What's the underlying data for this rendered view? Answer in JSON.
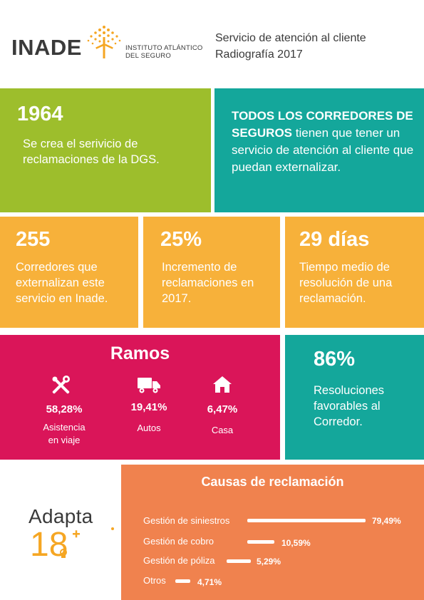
{
  "header": {
    "logo": "INADE",
    "logo_sub1": "INSTITUTO ATLÁNTICO",
    "logo_sub2": "DEL SEGURO",
    "title1": "Servicio de atención al cliente",
    "title2": "Radiografía 2017"
  },
  "box1": {
    "year": "1964",
    "desc": "Se crea el serivicio de reclamaciones de la DGS."
  },
  "box2": {
    "highlight": "TODOS LOS CORREDORES DE SEGUROS",
    "rest": " tienen que tener un servicio de atención al cliente que puedan externalizar."
  },
  "stats": [
    {
      "value": "255",
      "desc": "Corredores que externalizan este servicio en Inade."
    },
    {
      "value": "25%",
      "desc": "Incremento de reclamaciones en 2017."
    },
    {
      "value": "29 días",
      "desc": "Tiempo medio de resolución de una reclamación."
    }
  ],
  "ramos": {
    "title": "Ramos",
    "items": [
      {
        "value": "58,28%",
        "label1": "Asistencia",
        "label2": "en viaje",
        "icon": "tools-icon"
      },
      {
        "value": "19,41%",
        "label1": "Autos",
        "label2": "",
        "icon": "truck-icon"
      },
      {
        "value": "6,47%",
        "label1": "Casa",
        "label2": "",
        "icon": "house-icon"
      }
    ]
  },
  "resoluciones": {
    "value": "86%",
    "desc": "Resoluciones favorables al Corredor."
  },
  "causas": {
    "title": "Causas de reclamación",
    "items": [
      {
        "label": "Gestión de siniestros",
        "value": "79,49%",
        "pct": 79.49
      },
      {
        "label": "Gestión de cobro",
        "value": "10,59%",
        "pct": 10.59
      },
      {
        "label": "Gestión de póliza",
        "value": "5,29%",
        "pct": 5.29
      },
      {
        "label": "Otros",
        "value": "4,71%",
        "pct": 4.71
      }
    ]
  },
  "adapta": {
    "word": "Adapta",
    "number": "18"
  },
  "colors": {
    "green": "#9dbe2c",
    "teal": "#14a79b",
    "yellow": "#f7b13a",
    "red": "#da1559",
    "orange": "#f0824e",
    "gold": "#f5a623"
  }
}
